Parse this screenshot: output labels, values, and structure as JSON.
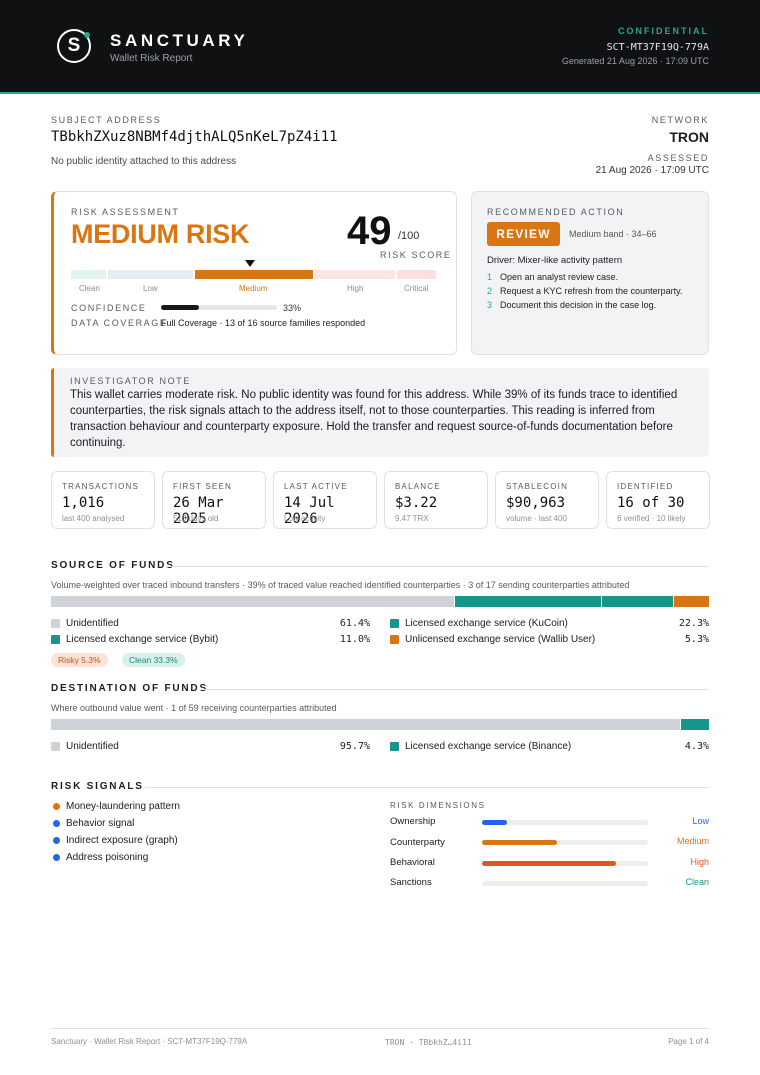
{
  "header": {
    "logo_letter": "S",
    "brand": "SANCTUARY",
    "subtitle": "Wallet Risk Report",
    "confidential": "CONFIDENTIAL",
    "reference": "SCT-MT37F19Q-779A",
    "generated": "Generated 21 Aug 2026 · 17:09 UTC"
  },
  "subject": {
    "label": "SUBJECT ADDRESS",
    "address": "TBbkhZXuz8NBMf4djthALQ5nKeL7pZ4i11",
    "identity_note": "No public identity attached to this address",
    "network_label": "NETWORK",
    "network": "TRON",
    "assessed_label": "ASSESSED",
    "assessed": "21 Aug 2026 · 17:09 UTC"
  },
  "risk": {
    "label": "RISK ASSESSMENT",
    "level": "MEDIUM RISK",
    "score": "49",
    "score_max": "/100",
    "score_label": "RISK SCORE",
    "scale_labels": [
      "Clean",
      "Low",
      "Medium",
      "High",
      "Critical"
    ],
    "active_band": "Medium",
    "confidence_label": "CONFIDENCE",
    "confidence": "33%",
    "confidence_fraction": 0.33,
    "coverage_label": "DATA COVERAGE",
    "coverage": "Full Coverage · 13 of 16 source families responded"
  },
  "action": {
    "label": "RECOMMENDED ACTION",
    "button": "REVIEW",
    "band": "Medium band · 34–66",
    "driver": "Driver: Mixer-like activity pattern",
    "steps": [
      {
        "n": "1",
        "text": "Open an analyst review case."
      },
      {
        "n": "2",
        "text": "Request a KYC refresh from the counterparty."
      },
      {
        "n": "3",
        "text": "Document this decision in the case log."
      }
    ]
  },
  "note": {
    "label": "INVESTIGATOR NOTE",
    "text": "This wallet carries moderate risk. No public identity was found for this address. While 39% of its funds trace to identified counterparties, the risk signals attach to the address itself, not to those counterparties. This reading is inferred from transaction behaviour and counterparty exposure. Hold the transfer and request source-of-funds documentation before continuing."
  },
  "stats": [
    {
      "label": "TRANSACTIONS",
      "value": "1,016",
      "sub": "last 400 analysed"
    },
    {
      "label": "FIRST SEEN",
      "value": "26 Mar 2025",
      "sub": "513 days old"
    },
    {
      "label": "LAST ACTIVE",
      "value": "14 Jul 2026",
      "sub": "Low activity"
    },
    {
      "label": "BALANCE",
      "value": "$3.22",
      "sub": "9.47 TRX"
    },
    {
      "label": "STABLECOIN",
      "value": "$90,963",
      "sub": "volume · last 400"
    },
    {
      "label": "IDENTIFIED",
      "value": "16 of 30",
      "sub": "6 verified · 10 likely"
    }
  ],
  "source": {
    "title": "SOURCE OF FUNDS",
    "subtitle": "Volume-weighted over traced inbound transfers · 39% of traced value reached identified counterparties · 3 of 17 sending counterparties attributed",
    "items": [
      {
        "label": "Unidentified",
        "value": "61.4%",
        "share": 61.4,
        "color": "#cfd3d8"
      },
      {
        "label": "Licensed exchange service (KuCoin)",
        "value": "22.3%",
        "share": 22.3,
        "color": "#14968a"
      },
      {
        "label": "Licensed exchange service (Bybit)",
        "value": "11.0%",
        "share": 11.0,
        "color": "#14968a"
      },
      {
        "label": "Unlicensed exchange service (Wallib User)",
        "value": "5.3%",
        "share": 5.3,
        "color": "#d97612"
      }
    ],
    "pills": [
      {
        "text": "Risky 5.3%",
        "bg": "#fde3d6",
        "fg": "#c2501c"
      },
      {
        "text": "Clean 33.3%",
        "bg": "#d8f1eb",
        "fg": "#1b8a74"
      }
    ]
  },
  "destination": {
    "title": "DESTINATION OF FUNDS",
    "subtitle": "Where outbound value went · 1 of 59 receiving counterparties attributed",
    "items": [
      {
        "label": "Unidentified",
        "value": "95.7%",
        "share": 95.7,
        "color": "#cfd3d8"
      },
      {
        "label": "Licensed exchange service (Binance)",
        "value": "4.3%",
        "share": 4.3,
        "color": "#14968a"
      }
    ]
  },
  "signals": {
    "title": "RISK SIGNALS",
    "items": [
      {
        "label": "Money-laundering pattern",
        "color": "#d97612"
      },
      {
        "label": "Behavior signal",
        "color": "#2563eb"
      },
      {
        "label": "Indirect exposure (graph)",
        "color": "#2563eb"
      },
      {
        "label": "Address poisoning",
        "color": "#2563eb"
      }
    ],
    "dimensions_label": "RISK DIMENSIONS",
    "dimensions": [
      {
        "name": "Ownership",
        "level": "Low",
        "fraction": 0.15,
        "color": "#2563eb"
      },
      {
        "name": "Counterparty",
        "level": "Medium",
        "fraction": 0.45,
        "color": "#d97612"
      },
      {
        "name": "Behavioral",
        "level": "High",
        "fraction": 0.81,
        "color": "#e0571b"
      },
      {
        "name": "Sanctions",
        "level": "Clean",
        "fraction": 0,
        "color": "#14968a"
      }
    ]
  },
  "footer": {
    "left": "Sanctuary · Wallet Risk Report · SCT-MT37F19Q-779A",
    "center": "TRON · TBbkhZ…4i11",
    "right": "Page 1 of 4"
  }
}
